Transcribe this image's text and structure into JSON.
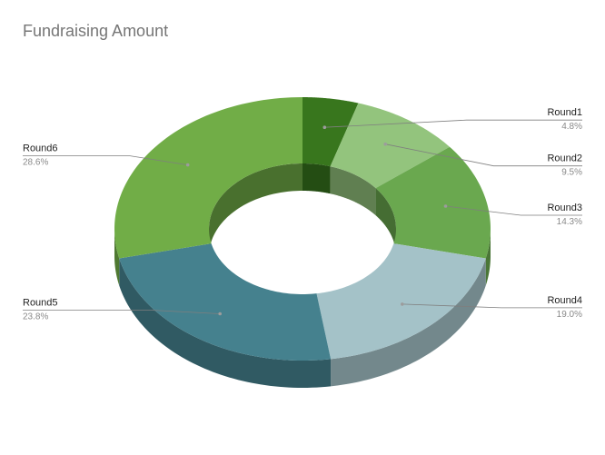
{
  "chart_data": {
    "type": "pie",
    "variant": "doughnut-3d",
    "title": "Fundraising Amount",
    "categories": [
      "Round1",
      "Round2",
      "Round3",
      "Round4",
      "Round5",
      "Round6"
    ],
    "values": [
      4.8,
      9.5,
      14.3,
      19.0,
      23.8,
      28.6
    ],
    "value_labels": [
      "4.8%",
      "9.5%",
      "14.3%",
      "19.0%",
      "23.8%",
      "28.6%"
    ],
    "colors": [
      "#38761d",
      "#93c47d",
      "#6aa84f",
      "#a4c2c8",
      "#45818e",
      "#71ad47"
    ],
    "legend": "none",
    "labels": "outside-with-leader-lines"
  }
}
